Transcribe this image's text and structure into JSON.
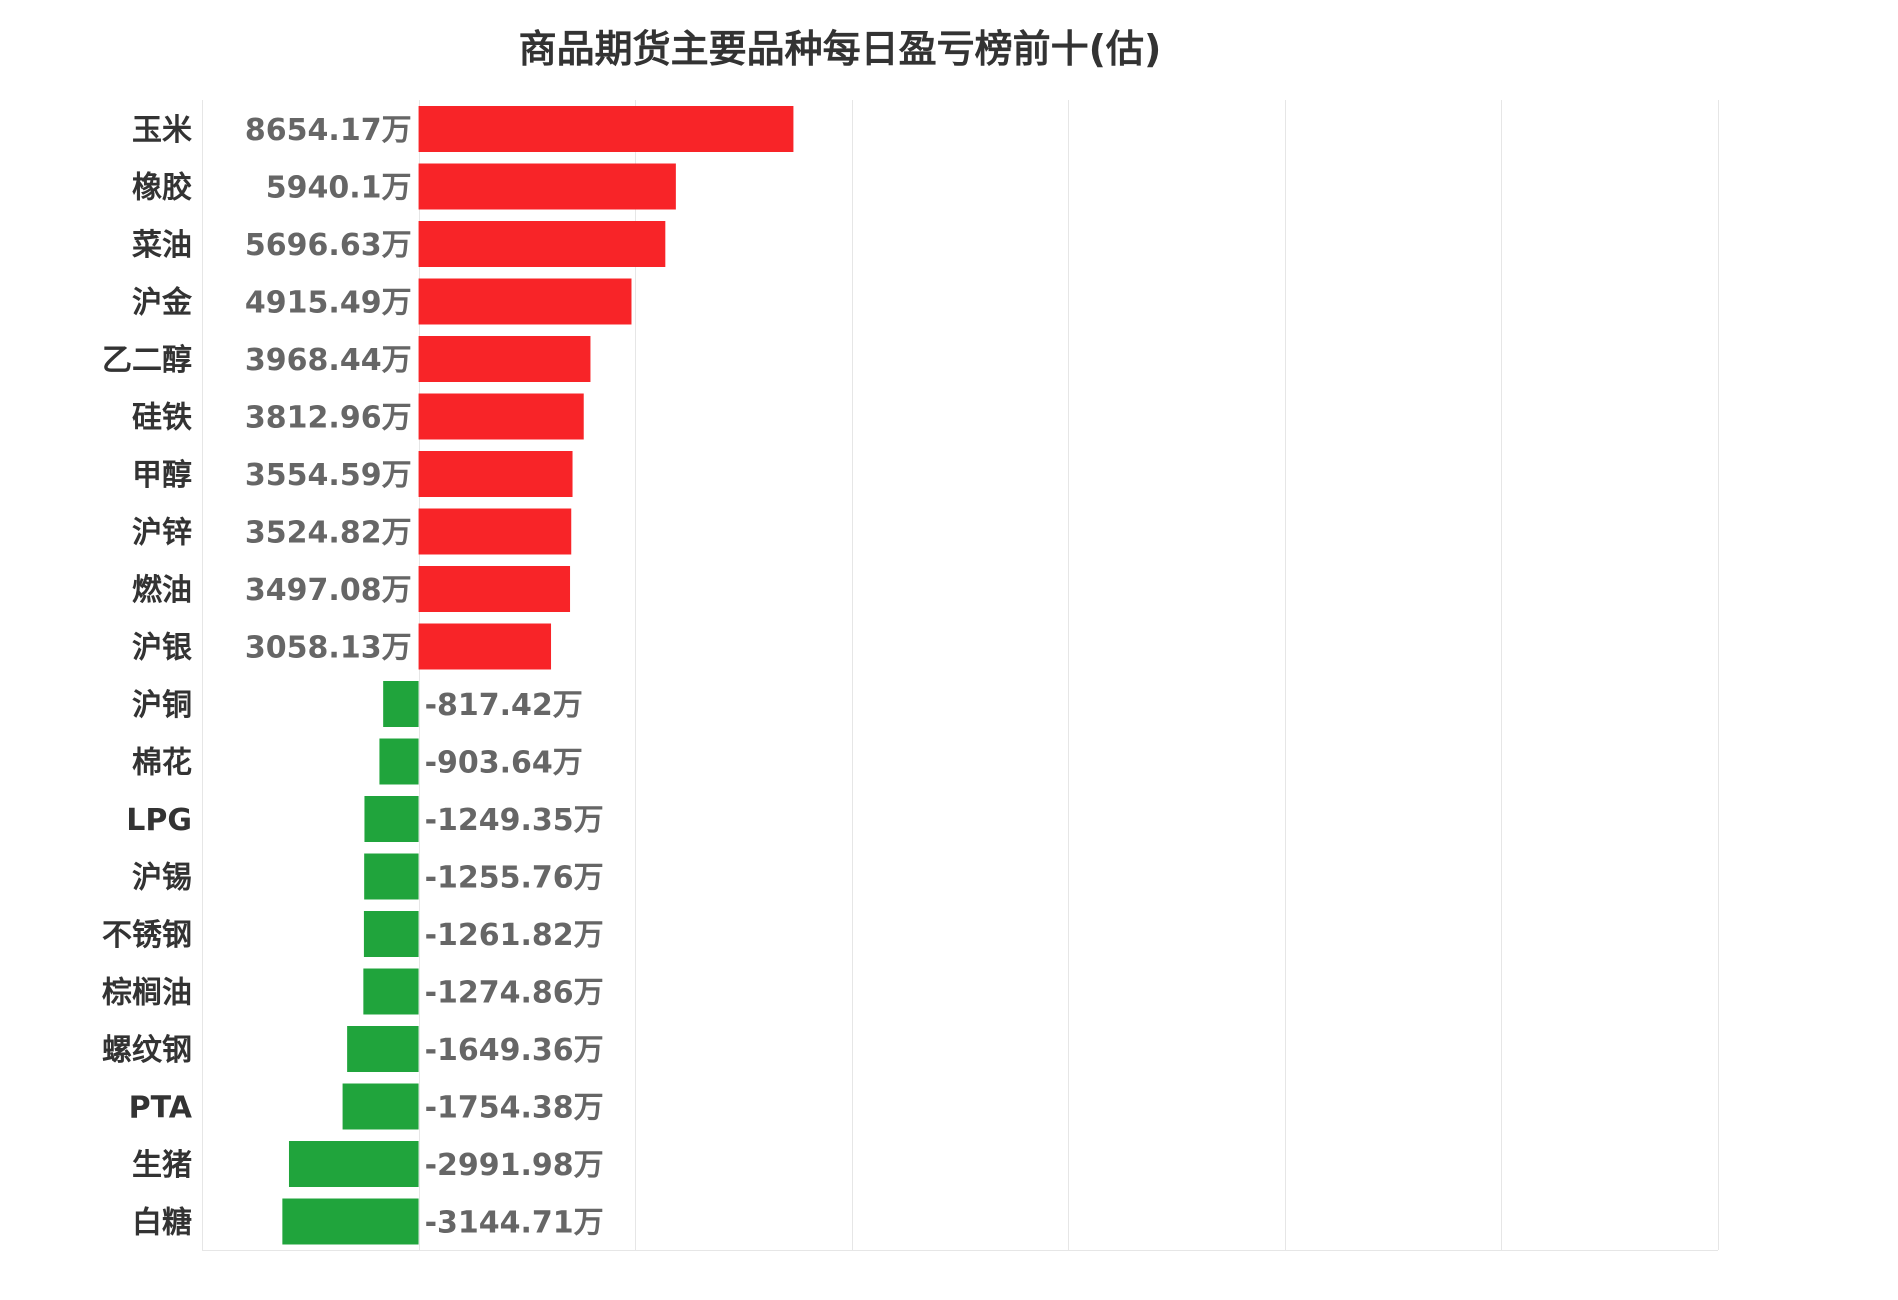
{
  "colors": {
    "positive": "#f82428",
    "negative": "#20a43c",
    "text": "#333333",
    "value_text": "#666666",
    "grid": "#e6e6e6"
  },
  "chart_data": {
    "type": "bar",
    "orientation": "horizontal",
    "title": "商品期货主要品种每日盈亏榜前十(估)",
    "xlabel": "",
    "ylabel": "",
    "unit_suffix": "万",
    "grid": true,
    "legend": "none",
    "xlim": [
      -5000,
      30000
    ],
    "gridline_values": [
      -5000,
      0,
      5000,
      10000,
      15000,
      20000,
      25000,
      30000
    ],
    "categories": [
      "玉米",
      "橡胶",
      "菜油",
      "沪金",
      "乙二醇",
      "硅铁",
      "甲醇",
      "沪锌",
      "燃油",
      "沪银",
      "沪铜",
      "棉花",
      "LPG",
      "沪锡",
      "不锈钢",
      "棕榈油",
      "螺纹钢",
      "PTA",
      "生猪",
      "白糖"
    ],
    "values": [
      8654.17,
      5940.1,
      5696.63,
      4915.49,
      3968.44,
      3812.96,
      3554.59,
      3524.82,
      3497.08,
      3058.13,
      -817.42,
      -903.64,
      -1249.35,
      -1255.76,
      -1261.82,
      -1274.86,
      -1649.36,
      -1754.38,
      -2991.98,
      -3144.71
    ],
    "data_labels": [
      "8654.17万",
      "5940.1万",
      "5696.63万",
      "4915.49万",
      "3968.44万",
      "3812.96万",
      "3554.59万",
      "3524.82万",
      "3497.08万",
      "3058.13万",
      "-817.42万",
      "-903.64万",
      "-1249.35万",
      "-1255.76万",
      "-1261.82万",
      "-1274.86万",
      "-1649.36万",
      "-1754.38万",
      "-2991.98万",
      "-3144.71万"
    ]
  }
}
